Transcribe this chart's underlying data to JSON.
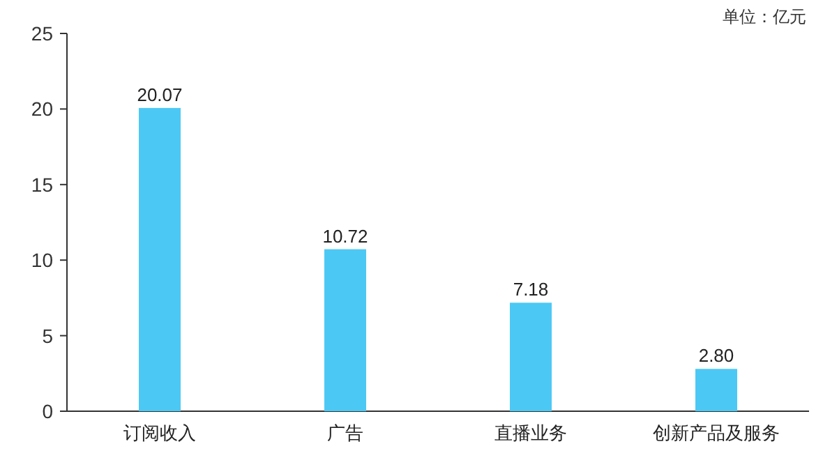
{
  "chart_data": {
    "type": "bar",
    "categories": [
      "订阅收入",
      "广告",
      "直播业务",
      "创新产品及服务"
    ],
    "values": [
      20.07,
      10.72,
      7.18,
      2.8
    ],
    "value_labels": [
      "20.07",
      "10.72",
      "7.18",
      "2.80"
    ],
    "color": "#4cc8f4",
    "ylim": [
      0,
      25
    ],
    "yticks": [
      0,
      5,
      10,
      15,
      20,
      25
    ],
    "grid": false,
    "annotations": [
      "单位：亿元"
    ]
  }
}
